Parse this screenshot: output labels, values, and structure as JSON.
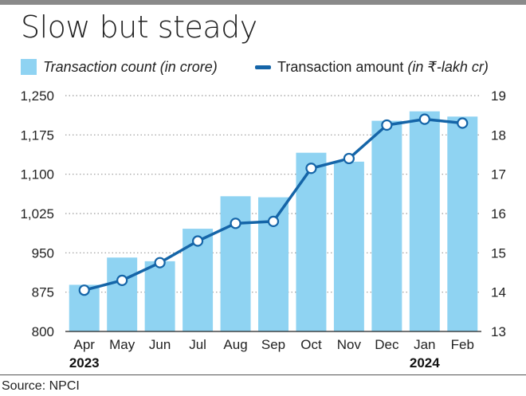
{
  "title": "Slow but steady",
  "source": "Source: NPCI",
  "legend": {
    "bar_label": "Transaction count (in crore)",
    "line_label_prefix": "Transaction amount ",
    "line_label_unit": "(in ₹-lakh cr)"
  },
  "colors": {
    "bar": "#8fd3f2",
    "line": "#1565a8",
    "marker_fill": "#ffffff",
    "grid": "#9a9a9a"
  },
  "chart_data": {
    "type": "bar",
    "title": "Slow but steady",
    "categories": [
      "Apr",
      "May",
      "Jun",
      "Jul",
      "Aug",
      "Sep",
      "Oct",
      "Nov",
      "Dec",
      "Jan",
      "Feb"
    ],
    "year_labels": [
      {
        "category": "Apr",
        "label": "2023"
      },
      {
        "category": "Jan",
        "label": "2024"
      }
    ],
    "series": [
      {
        "name": "Transaction count (in crore)",
        "type": "bar",
        "axis": "left",
        "values": [
          889,
          941,
          934,
          996,
          1058,
          1056,
          1141,
          1124,
          1202,
          1220,
          1210
        ]
      },
      {
        "name": "Transaction amount (in ₹-lakh cr)",
        "type": "line",
        "axis": "right",
        "values": [
          14.05,
          14.3,
          14.75,
          15.3,
          15.75,
          15.8,
          17.15,
          17.4,
          18.25,
          18.4,
          18.3
        ]
      }
    ],
    "y_left": {
      "ylim": [
        800,
        1250
      ],
      "ticks": [
        800,
        875,
        950,
        "1,025",
        "1,100",
        "1,175",
        "1,250"
      ]
    },
    "y_right": {
      "ylim": [
        13,
        19
      ],
      "ticks": [
        13,
        14,
        15,
        16,
        17,
        18,
        19
      ]
    },
    "grid": "dotted horizontal",
    "legend_position": "top"
  }
}
